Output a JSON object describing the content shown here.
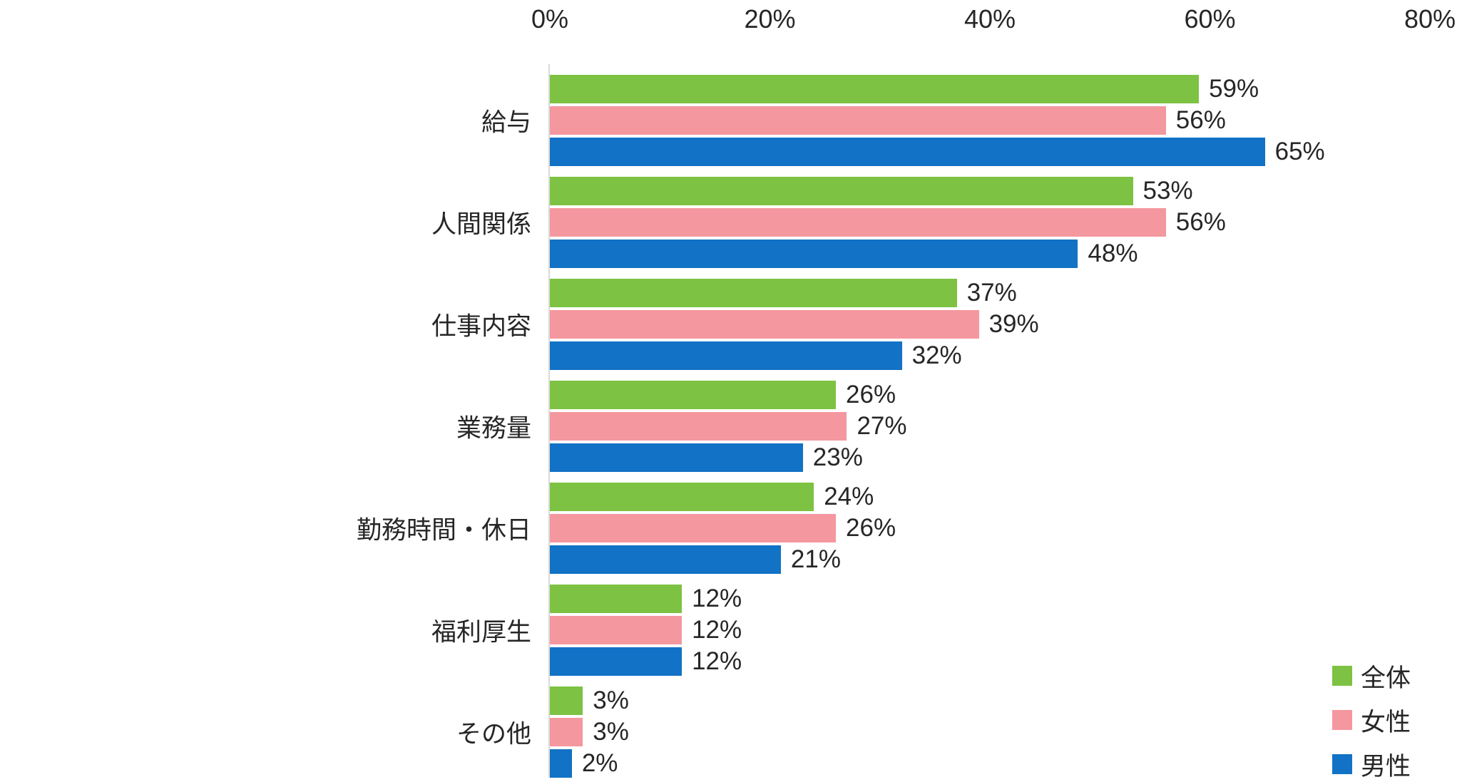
{
  "chart_data": {
    "type": "bar",
    "orientation": "horizontal",
    "title": "",
    "categories": [
      "給与",
      "人間関係",
      "仕事内容",
      "業務量",
      "勤務時間・休日",
      "福利厚生",
      "その他"
    ],
    "series": [
      {
        "name": "全体",
        "color": "#7dc242",
        "values": [
          59,
          53,
          37,
          26,
          24,
          12,
          3
        ]
      },
      {
        "name": "女性",
        "color": "#f4979f",
        "values": [
          56,
          56,
          39,
          27,
          26,
          12,
          3
        ]
      },
      {
        "name": "男性",
        "color": "#1272c5",
        "values": [
          65,
          48,
          32,
          23,
          21,
          12,
          2
        ]
      }
    ],
    "value_labels": [
      [
        "59%",
        "53%",
        "37%",
        "26%",
        "24%",
        "12%",
        "3%"
      ],
      [
        "56%",
        "56%",
        "39%",
        "27%",
        "26%",
        "12%",
        "3%"
      ],
      [
        "65%",
        "48%",
        "32%",
        "23%",
        "21%",
        "12%",
        "2%"
      ]
    ],
    "x_ticks": [
      {
        "label": "0%",
        "value": 0
      },
      {
        "label": "20%",
        "value": 20
      },
      {
        "label": "40%",
        "value": 40
      },
      {
        "label": "60%",
        "value": 60
      },
      {
        "label": "80%",
        "value": 80
      }
    ],
    "xlim": [
      0,
      80
    ],
    "value_suffix": "%",
    "grid": false,
    "legend_position": "bottom-right",
    "axis_line_color": "#d9d9d9",
    "text_color": "#262626"
  }
}
